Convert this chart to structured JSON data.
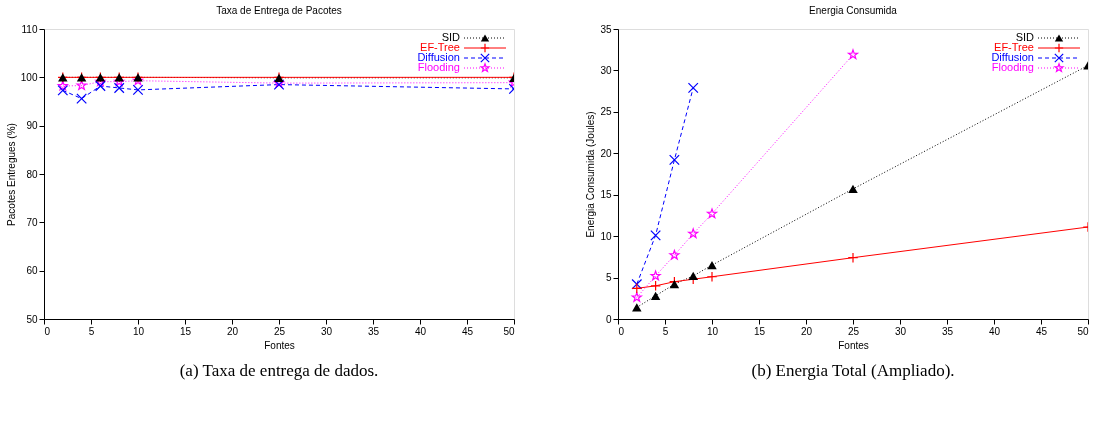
{
  "chart_data": [
    {
      "type": "line",
      "title": "Taxa de Entrega de Pacotes",
      "xlabel": "Fontes",
      "ylabel": "Pacotes Entregues (%)",
      "x": [
        2,
        4,
        6,
        8,
        10,
        25,
        50
      ],
      "series": [
        {
          "name": "SID",
          "color": "#000000",
          "marker": "triangle",
          "line_style": "dotted",
          "values": [
            100,
            100,
            100,
            100,
            100,
            99.9,
            99.9
          ]
        },
        {
          "name": "EF-Tree",
          "color": "#ff0000",
          "marker": "plus",
          "line_style": "solid",
          "values": [
            100,
            100,
            100,
            100,
            100,
            100,
            100
          ]
        },
        {
          "name": "Diffusion",
          "color": "#0000ff",
          "marker": "cross",
          "line_style": "dashed",
          "values": [
            97.3,
            95.6,
            98.2,
            97.8,
            97.4,
            98.5,
            97.6
          ]
        },
        {
          "name": "Flooding",
          "color": "#ff00ff",
          "marker": "star",
          "line_style": "dotted",
          "values": [
            98.2,
            98.3,
            99.1,
            99.1,
            99.3,
            98.8,
            98.9
          ]
        }
      ],
      "xlim": [
        0,
        50
      ],
      "xticks": [
        0,
        5,
        10,
        15,
        20,
        25,
        30,
        35,
        40,
        45,
        50
      ],
      "ylim": [
        50,
        110
      ],
      "yticks": [
        50,
        60,
        70,
        80,
        90,
        100,
        110
      ],
      "grid": false,
      "legend": "top right",
      "annotations": [
        "(a)  Taxa de entrega de dados."
      ]
    },
    {
      "type": "line",
      "title": "Energia Consumida",
      "xlabel": "Fontes",
      "ylabel": "Energia Consumida (Joules)",
      "x": [
        2,
        4,
        6,
        8,
        10,
        25,
        50
      ],
      "series": [
        {
          "name": "SID",
          "color": "#000000",
          "marker": "triangle",
          "line_style": "dotted",
          "values": [
            1.4,
            2.8,
            4.2,
            5.2,
            6.5,
            15.7,
            30.6
          ]
        },
        {
          "name": "EF-Tree",
          "color": "#ff0000",
          "marker": "plus",
          "line_style": "solid",
          "values": [
            3.7,
            4.0,
            4.5,
            4.8,
            5.1,
            7.4,
            11.1
          ]
        },
        {
          "name": "Diffusion",
          "color": "#0000ff",
          "marker": "cross",
          "line_style": "dashed",
          "values": [
            4.2,
            10.1,
            19.2,
            27.9,
            null,
            null,
            null
          ]
        },
        {
          "name": "Flooding",
          "color": "#ff00ff",
          "marker": "star",
          "line_style": "dotted",
          "values": [
            2.6,
            5.2,
            7.7,
            10.3,
            12.7,
            31.9,
            null
          ]
        }
      ],
      "xlim": [
        0,
        50
      ],
      "xticks": [
        0,
        5,
        10,
        15,
        20,
        25,
        30,
        35,
        40,
        45,
        50
      ],
      "ylim": [
        0,
        35
      ],
      "yticks": [
        0,
        5,
        10,
        15,
        20,
        25,
        30,
        35
      ],
      "grid": false,
      "legend": "top right",
      "annotations": [
        "(b)  Energia Total (Ampliado)."
      ]
    }
  ]
}
